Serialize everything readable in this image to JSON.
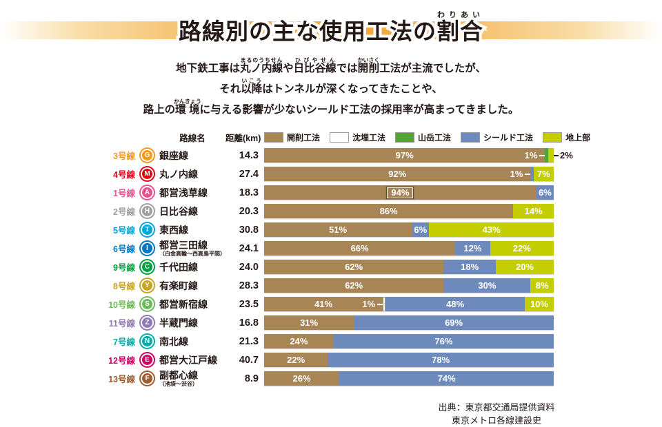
{
  "title": {
    "plain": "路線別の主な使用工法の割合",
    "segments": [
      {
        "t": "路線別の主な使用工法の"
      },
      {
        "t": "割合",
        "r": "わりあい"
      }
    ]
  },
  "intro": {
    "lines": [
      [
        {
          "t": "地下鉄工事は"
        },
        {
          "t": "丸ノ内線",
          "r": "まるのうちせん"
        },
        {
          "t": "や"
        },
        {
          "t": "日比谷線",
          "r": "ひびやせん"
        },
        {
          "t": "では"
        },
        {
          "t": "開削",
          "r": "かいさく"
        },
        {
          "t": "工法が主流でしたが、"
        }
      ],
      [
        {
          "t": "それ"
        },
        {
          "t": "以降",
          "r": "いこう"
        },
        {
          "t": "はトンネルが深くなってきたことや、"
        }
      ],
      [
        {
          "t": "路上の"
        },
        {
          "t": "環境",
          "r": "かんきょう"
        },
        {
          "t": "に与える影響が少ないシールド工法の採用率が高まってきました。"
        }
      ]
    ]
  },
  "table_headers": {
    "line_name": "路線名",
    "distance": "距離(km)"
  },
  "legend": [
    {
      "label": "開削工法",
      "method": "kaisaku"
    },
    {
      "label": "沈埋工法",
      "method": "chinmai"
    },
    {
      "label": "山岳工法",
      "method": "sangaku"
    },
    {
      "label": "シールド工法",
      "method": "shield"
    },
    {
      "label": "地上部",
      "method": "chijo"
    }
  ],
  "method_colors": {
    "kaisaku": "#a78554",
    "chinmai": "#ffffff",
    "sangaku": "#55a337",
    "shield": "#6e8abc",
    "chijo": "#c3cd00"
  },
  "chart_data": {
    "type": "bar",
    "orientation": "horizontal",
    "stacked": true,
    "unit": "%",
    "title": "路線別の主な使用工法の割合",
    "xlim": [
      0,
      100
    ],
    "rows": [
      {
        "line_no": "3号線",
        "symbol": "G",
        "color": "#f7981d",
        "name": "銀座線",
        "sub": "",
        "distance_km": "14.3",
        "segments": [
          {
            "method": "kaisaku",
            "pct": 97,
            "label": "97%",
            "label_pos": "center"
          },
          {
            "method": "sangaku",
            "pct": 1,
            "label": "1%",
            "label_pos": "before"
          },
          {
            "method": "chijo",
            "pct": 2,
            "label": "2%",
            "label_pos": "outside-right"
          }
        ]
      },
      {
        "line_no": "4号線",
        "symbol": "M",
        "color": "#e60012",
        "name": "丸ノ内線",
        "sub": "",
        "distance_km": "27.4",
        "segments": [
          {
            "method": "kaisaku",
            "pct": 92,
            "label": "92%",
            "label_pos": "center"
          },
          {
            "method": "shield",
            "pct": 1,
            "label": "1%",
            "label_pos": "before"
          },
          {
            "method": "chijo",
            "pct": 7,
            "label": "7%",
            "label_pos": "center"
          }
        ]
      },
      {
        "line_no": "1号線",
        "symbol": "A",
        "color": "#e75291",
        "name": "都営浅草線",
        "sub": "",
        "distance_km": "18.3",
        "segments": [
          {
            "method": "kaisaku",
            "pct": 94,
            "label": "94%",
            "label_pos": "center",
            "boxed": true
          },
          {
            "method": "shield",
            "pct": 6,
            "label": "6%",
            "label_pos": "center"
          }
        ]
      },
      {
        "line_no": "2号線",
        "symbol": "H",
        "color": "#9fa0a0",
        "name": "日比谷線",
        "sub": "",
        "distance_km": "20.3",
        "segments": [
          {
            "method": "kaisaku",
            "pct": 86,
            "label": "86%",
            "label_pos": "center"
          },
          {
            "method": "chijo",
            "pct": 14,
            "label": "14%",
            "label_pos": "center"
          }
        ]
      },
      {
        "line_no": "5号線",
        "symbol": "T",
        "color": "#00a7db",
        "name": "東西線",
        "sub": "",
        "distance_km": "30.8",
        "segments": [
          {
            "method": "kaisaku",
            "pct": 51,
            "label": "51%",
            "label_pos": "center"
          },
          {
            "method": "shield",
            "pct": 6,
            "label": "6%",
            "label_pos": "center"
          },
          {
            "method": "chijo",
            "pct": 43,
            "label": "43%",
            "label_pos": "center"
          }
        ]
      },
      {
        "line_no": "6号線",
        "symbol": "I",
        "color": "#0079c2",
        "name": "都営三田線",
        "sub": "（白金高輪～西高島平間）",
        "distance_km": "24.1",
        "segments": [
          {
            "method": "kaisaku",
            "pct": 66,
            "label": "66%",
            "label_pos": "center"
          },
          {
            "method": "shield",
            "pct": 12,
            "label": "12%",
            "label_pos": "center"
          },
          {
            "method": "chijo",
            "pct": 22,
            "label": "22%",
            "label_pos": "center"
          }
        ]
      },
      {
        "line_no": "9号線",
        "symbol": "C",
        "color": "#00a040",
        "name": "千代田線",
        "sub": "",
        "distance_km": "24.0",
        "segments": [
          {
            "method": "kaisaku",
            "pct": 62,
            "label": "62%",
            "label_pos": "center"
          },
          {
            "method": "shield",
            "pct": 18,
            "label": "18%",
            "label_pos": "center"
          },
          {
            "method": "chijo",
            "pct": 20,
            "label": "20%",
            "label_pos": "center"
          }
        ]
      },
      {
        "line_no": "8号線",
        "symbol": "Y",
        "color": "#c9a322",
        "name": "有楽町線",
        "sub": "",
        "distance_km": "28.3",
        "segments": [
          {
            "method": "kaisaku",
            "pct": 62,
            "label": "62%",
            "label_pos": "center"
          },
          {
            "method": "shield",
            "pct": 30,
            "label": "30%",
            "label_pos": "center"
          },
          {
            "method": "chijo",
            "pct": 8,
            "label": "8%",
            "label_pos": "center"
          }
        ]
      },
      {
        "line_no": "10号線",
        "symbol": "S",
        "color": "#6cbb5a",
        "name": "都営新宿線",
        "sub": "",
        "distance_km": "23.5",
        "segments": [
          {
            "method": "kaisaku",
            "pct": 41,
            "label": "41%",
            "label_pos": "center"
          },
          {
            "method": "chinmai",
            "pct": 1,
            "label": "1%",
            "label_pos": "before"
          },
          {
            "method": "shield",
            "pct": 48,
            "label": "48%",
            "label_pos": "center"
          },
          {
            "method": "chijo",
            "pct": 10,
            "label": "10%",
            "label_pos": "center"
          }
        ]
      },
      {
        "line_no": "11号線",
        "symbol": "Z",
        "color": "#9079b6",
        "name": "半蔵門線",
        "sub": "",
        "distance_km": "16.8",
        "segments": [
          {
            "method": "kaisaku",
            "pct": 31,
            "label": "31%",
            "label_pos": "center"
          },
          {
            "method": "shield",
            "pct": 69,
            "label": "69%",
            "label_pos": "center"
          }
        ]
      },
      {
        "line_no": "7号線",
        "symbol": "N",
        "color": "#00ada9",
        "name": "南北線",
        "sub": "",
        "distance_km": "21.3",
        "segments": [
          {
            "method": "kaisaku",
            "pct": 24,
            "label": "24%",
            "label_pos": "center"
          },
          {
            "method": "shield",
            "pct": 76,
            "label": "76%",
            "label_pos": "center"
          }
        ]
      },
      {
        "line_no": "12号線",
        "symbol": "E",
        "color": "#cc0066",
        "name": "都営大江戸線",
        "sub": "",
        "distance_km": "40.7",
        "segments": [
          {
            "method": "kaisaku",
            "pct": 22,
            "label": "22%",
            "label_pos": "center"
          },
          {
            "method": "shield",
            "pct": 78,
            "label": "78%",
            "label_pos": "center"
          }
        ]
      },
      {
        "line_no": "13号線",
        "symbol": "F",
        "color": "#9c5e31",
        "name": "副都心線",
        "sub": "（池袋～渋谷）",
        "distance_km": "8.9",
        "segments": [
          {
            "method": "kaisaku",
            "pct": 26,
            "label": "26%",
            "label_pos": "center"
          },
          {
            "method": "shield",
            "pct": 74,
            "label": "74%",
            "label_pos": "center"
          }
        ]
      }
    ]
  },
  "source": {
    "line1": "出典：東京都交通局提供資料",
    "line2": "東京メトロ各線建設史"
  }
}
